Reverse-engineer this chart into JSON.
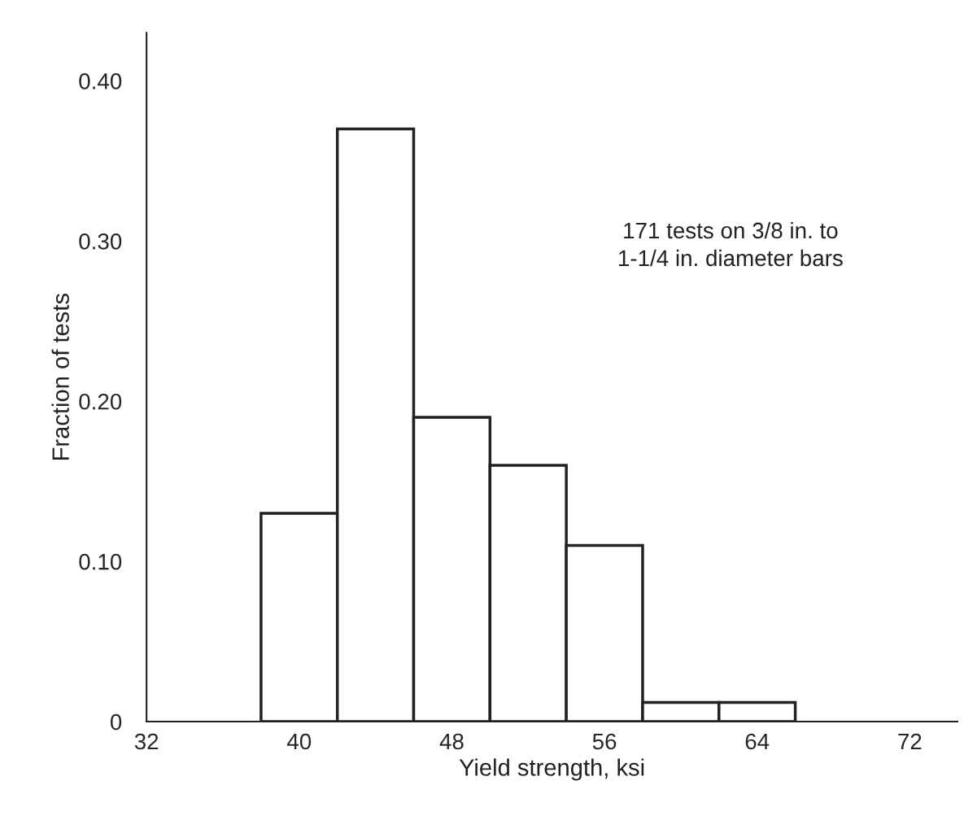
{
  "chart_data": {
    "type": "histogram",
    "xlabel": "Yield strength, ksi",
    "ylabel": "Fraction of tests",
    "bins": [
      38,
      42,
      46,
      50,
      54,
      58,
      62,
      66
    ],
    "values": [
      0.13,
      0.37,
      0.19,
      0.16,
      0.11,
      0.012,
      0.012
    ],
    "color": "#ffffff",
    "xlim": [
      32,
      74.5
    ],
    "ylim": [
      0,
      0.43
    ],
    "xticks": [
      32,
      40,
      48,
      56,
      64,
      72
    ],
    "yticks": [
      0,
      {
        "value": 0.1,
        "label": "0.10"
      },
      {
        "value": 0.2,
        "label": "0.20"
      },
      {
        "value": 0.3,
        "label": "0.30"
      },
      {
        "value": 0.4,
        "label": "0.40"
      }
    ],
    "annotations": [
      "171 tests on 3/8 in. to\n1-1/4 in. diameter bars"
    ],
    "grid": false
  }
}
